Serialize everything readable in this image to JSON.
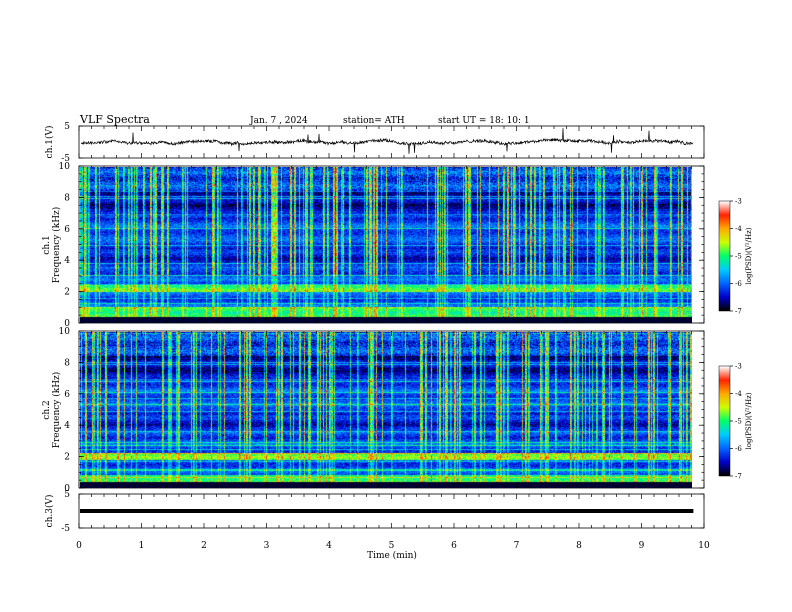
{
  "header": {
    "title": "VLF  Spectra",
    "date": "Jan.  7  , 2024",
    "station": "station= ATH",
    "start": "start  UT  =    18: 10: 1"
  },
  "chart_data": [
    {
      "type": "line",
      "panel": "ch1",
      "ylabel": "ch.1(V)",
      "yticks": [
        "5",
        "-5"
      ],
      "ylim": [
        -5,
        5
      ],
      "xlim": [
        0,
        10
      ],
      "signal_end_min": 9.83,
      "note_color": "#000000"
    },
    {
      "type": "heatmap",
      "panel": "ch1-spectrogram",
      "ylabel": "ch.1\nFrequency  (kHz)",
      "ylabel_lines": [
        "ch.1",
        "Frequency  (kHz)"
      ],
      "yticks": [
        "0",
        "2",
        "4",
        "6",
        "8",
        "10"
      ],
      "ylim": [
        0,
        10
      ],
      "xlim": [
        0,
        10
      ],
      "data_end_min": 9.83,
      "colorbar": {
        "label": "log(PSD)(V²/Hz)",
        "ticks": [
          "-3",
          "-4",
          "-5",
          "-6",
          "-7"
        ],
        "range": [
          -7,
          -3
        ]
      },
      "features": {
        "hum_band_khz": 2.2,
        "low_band_khz": [
          0.3,
          1.0
        ],
        "spheric_count": 160
      }
    },
    {
      "type": "heatmap",
      "panel": "ch2-spectrogram",
      "ylabel": "ch.2\nFrequency  (kHz)",
      "ylabel_lines": [
        "ch.2",
        "Frequency  (kHz)"
      ],
      "yticks": [
        "0",
        "2",
        "4",
        "6",
        "8",
        "10"
      ],
      "ylim": [
        0,
        10
      ],
      "xlim": [
        0,
        10
      ],
      "data_end_min": 9.83,
      "colorbar": {
        "label": "log(PSD)(V²/Hz)",
        "ticks": [
          "-3",
          "-4",
          "-5",
          "-6",
          "-7"
        ],
        "range": [
          -7,
          -3
        ]
      },
      "features": {
        "hum_band_khz": 2.0,
        "low_band_khz": [
          0.2,
          0.8
        ],
        "spheric_count": 150
      }
    },
    {
      "type": "line",
      "panel": "ch3",
      "ylabel": "ch.3(V)",
      "yticks": [
        "5",
        "-5"
      ],
      "ylim": [
        -5,
        5
      ],
      "xlim": [
        0,
        10
      ],
      "constant_value_v": 0,
      "signal_end_min": 9.83
    }
  ],
  "xaxis": {
    "label": "Time  (min)",
    "ticks": [
      "0",
      "1",
      "2",
      "3",
      "4",
      "5",
      "6",
      "7",
      "8",
      "9",
      "10"
    ]
  },
  "colormap": [
    "#000000",
    "#0000cc",
    "#0066ff",
    "#00ccff",
    "#00ff66",
    "#ccff00",
    "#ffaa00",
    "#ff2200",
    "#ffffff"
  ]
}
